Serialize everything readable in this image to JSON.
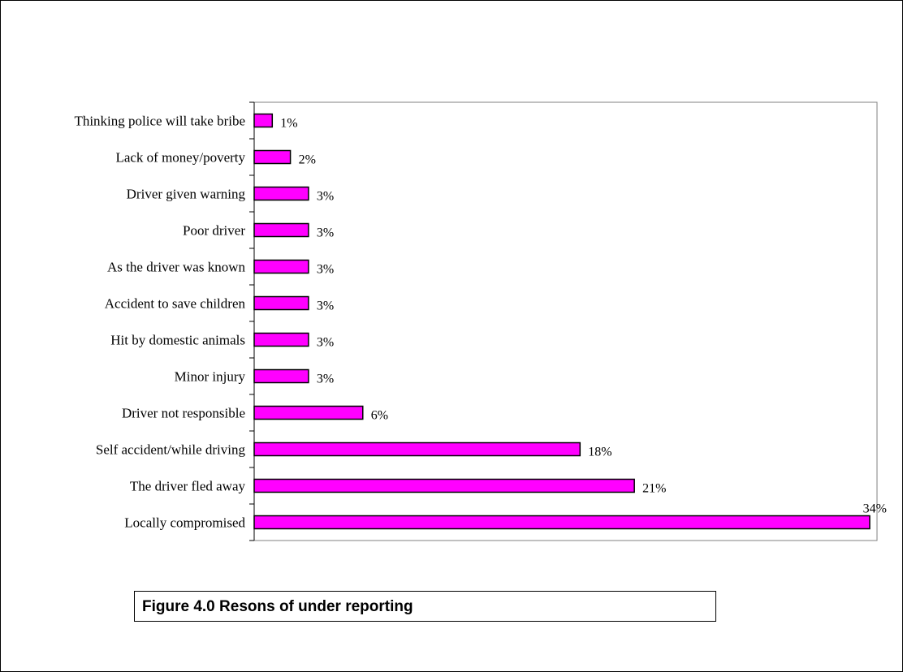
{
  "chart_data": {
    "type": "bar",
    "orientation": "horizontal",
    "categories": [
      "Thinking police will take bribe",
      "Lack of money/poverty",
      "Driver given warning",
      "Poor driver",
      "As the driver was known",
      "Accident to save children",
      "Hit by domestic animals",
      "Minor injury",
      "Driver not responsible",
      "Self accident/while driving",
      "The driver fled away",
      "Locally compromised"
    ],
    "values": [
      1,
      2,
      3,
      3,
      3,
      3,
      3,
      3,
      6,
      18,
      21,
      34
    ],
    "value_labels": [
      "1%",
      "2%",
      "3%",
      "3%",
      "3%",
      "3%",
      "3%",
      "3%",
      "6%",
      "18%",
      "21%",
      "34%"
    ],
    "xlim": [
      0,
      34
    ],
    "grid": false,
    "legend": "none",
    "bar_color": "#FF00FF",
    "bar_edge_color": "#000000"
  },
  "caption": {
    "text": "Figure 4.0 Resons of under reporting"
  }
}
